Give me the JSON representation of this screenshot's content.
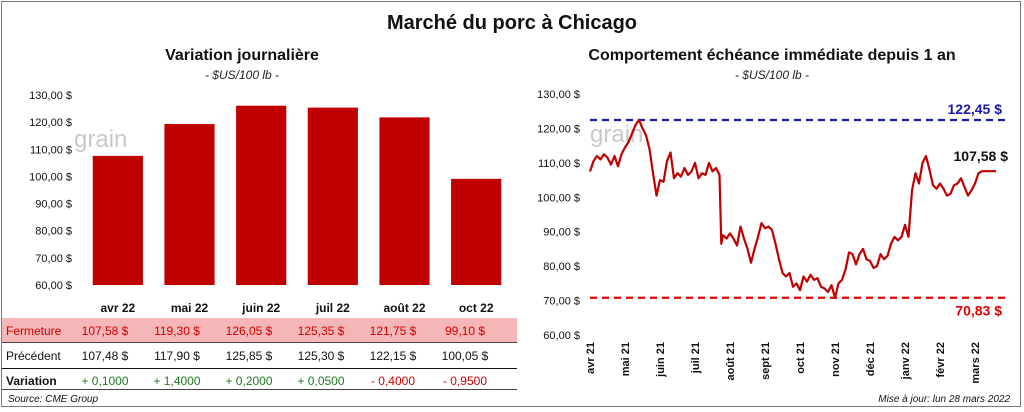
{
  "title": "Marché du porc à Chicago",
  "left": {
    "title": "Variation  journalière",
    "unit": "- $US/100 lb -",
    "watermark": "grain"
  },
  "right": {
    "title": "Comportement  échéance immédiate depuis 1 an",
    "unit": "- $US/100 lb -",
    "watermark": "grain"
  },
  "table": {
    "rows": [
      {
        "label": "Fermeture",
        "values": [
          "107,58  $",
          "119,30  $",
          "126,05  $",
          "125,35  $",
          "121,75  $",
          "99,10  $"
        ]
      },
      {
        "label": "Précédent",
        "values": [
          "107,48  $",
          "117,90  $",
          "125,85  $",
          "125,30  $",
          "122,15  $",
          "100,05  $"
        ]
      },
      {
        "label": "Variation",
        "values": [
          "+ 0,1000",
          "+ 1,4000",
          "+ 0,2000",
          "+ 0,0500",
          "- 0,4000",
          "- 0,9500"
        ]
      }
    ]
  },
  "footer": {
    "source": "Source: CME Group",
    "updated": "Mise à jour: lun 28 mars 2022"
  },
  "colors": {
    "bar": "#c00000",
    "line": "#c00000",
    "high_line": "#1a1aa8",
    "low_line": "#e00000",
    "fermeture_bg": "#f4b6b6",
    "positive": "#1f7a1f",
    "negative": "#d00000"
  },
  "chart_data": [
    {
      "type": "bar",
      "title": "Variation  journalière",
      "subtitle": "- $US/100 lb -",
      "categories": [
        "avr 22",
        "mai 22",
        "juin 22",
        "juil 22",
        "août 22",
        "oct 22"
      ],
      "values": [
        107.58,
        119.3,
        126.05,
        125.35,
        121.75,
        99.1
      ],
      "ylim": [
        60,
        130
      ],
      "yticks": [
        "60,00 $",
        "70,00 $",
        "80,00 $",
        "90,00 $",
        "100,00 $",
        "110,00 $",
        "120,00 $",
        "130,00 $"
      ],
      "ytick_values": [
        60,
        70,
        80,
        90,
        100,
        110,
        120,
        130
      ],
      "grid": false
    },
    {
      "type": "line",
      "title": "Comportement  échéance immédiate depuis 1 an",
      "subtitle": "- $US/100 lb -",
      "ylim": [
        60,
        130
      ],
      "yticks": [
        "60,00 $",
        "70,00 $",
        "80,00 $",
        "90,00 $",
        "100,00 $",
        "110,00 $",
        "120,00 $",
        "130,00 $"
      ],
      "ytick_values": [
        60,
        70,
        80,
        90,
        100,
        110,
        120,
        130
      ],
      "xticks": [
        "avr 21",
        "mai 21",
        "juin 21",
        "juil 21",
        "août 21",
        "sept 21",
        "oct 21",
        "nov 21",
        "déc 21",
        "janv 22",
        "févr 22",
        "mars 22"
      ],
      "x_range": [
        0,
        12
      ],
      "high": {
        "value": 122.45,
        "label": "122,45 $"
      },
      "low": {
        "value": 70.83,
        "label": "70,83 $"
      },
      "last": {
        "value": 107.58,
        "label": "107,58 $"
      },
      "grid": false,
      "x": [
        0.0,
        0.1,
        0.2,
        0.3,
        0.4,
        0.5,
        0.6,
        0.7,
        0.8,
        0.9,
        1.0,
        1.1,
        1.2,
        1.3,
        1.4,
        1.5,
        1.6,
        1.7,
        1.8,
        1.9,
        2.0,
        2.1,
        2.2,
        2.3,
        2.4,
        2.5,
        2.6,
        2.7,
        2.8,
        2.9,
        3.0,
        3.1,
        3.2,
        3.3,
        3.4,
        3.5,
        3.6,
        3.7,
        3.75,
        3.8,
        3.9,
        4.0,
        4.1,
        4.2,
        4.3,
        4.4,
        4.5,
        4.6,
        4.7,
        4.8,
        4.9,
        5.0,
        5.1,
        5.2,
        5.3,
        5.4,
        5.5,
        5.6,
        5.7,
        5.8,
        5.9,
        6.0,
        6.1,
        6.2,
        6.3,
        6.4,
        6.5,
        6.6,
        6.7,
        6.8,
        6.9,
        7.0,
        7.1,
        7.2,
        7.3,
        7.4,
        7.5,
        7.6,
        7.7,
        7.8,
        7.9,
        8.0,
        8.1,
        8.2,
        8.3,
        8.4,
        8.5,
        8.6,
        8.7,
        8.8,
        8.9,
        9.0,
        9.1,
        9.2,
        9.3,
        9.4,
        9.5,
        9.6,
        9.7,
        9.8,
        9.9,
        10.0,
        10.1,
        10.2,
        10.3,
        10.4,
        10.5,
        10.6,
        10.7,
        10.8,
        10.9,
        11.0,
        11.1,
        11.2,
        11.3,
        11.4,
        11.5,
        11.6
      ],
      "y": [
        107.5,
        110.5,
        112.0,
        111.0,
        112.5,
        111.5,
        109.5,
        112.0,
        109.0,
        112.5,
        114.5,
        116.0,
        118.5,
        121.0,
        122.5,
        120.0,
        118.0,
        114.0,
        107.0,
        100.5,
        105.0,
        104.5,
        110.5,
        113.0,
        105.5,
        107.0,
        106.0,
        108.5,
        106.5,
        107.5,
        110.0,
        105.5,
        107.0,
        106.5,
        110.0,
        107.5,
        108.5,
        106.5,
        86.5,
        89.0,
        88.0,
        89.5,
        88.0,
        86.0,
        91.5,
        88.0,
        85.0,
        81.0,
        85.0,
        88.5,
        92.5,
        91.0,
        91.5,
        90.5,
        86.5,
        82.0,
        78.0,
        77.0,
        78.0,
        74.0,
        75.0,
        73.0,
        77.0,
        75.5,
        77.5,
        76.0,
        76.5,
        74.0,
        73.5,
        72.5,
        74.5,
        70.8,
        75.0,
        76.0,
        79.0,
        84.0,
        83.5,
        80.5,
        83.5,
        85.0,
        82.0,
        81.5,
        79.5,
        80.0,
        83.5,
        82.0,
        83.0,
        86.5,
        88.5,
        87.5,
        88.5,
        92.0,
        88.5,
        102.0,
        107.0,
        104.0,
        110.0,
        112.0,
        108.0,
        103.5,
        102.5,
        104.0,
        102.5,
        100.5,
        101.0,
        103.5,
        104.0,
        105.5,
        103.0,
        100.5,
        102.0,
        104.0,
        107.0,
        107.58,
        107.58,
        107.58,
        107.58,
        107.58
      ]
    }
  ]
}
